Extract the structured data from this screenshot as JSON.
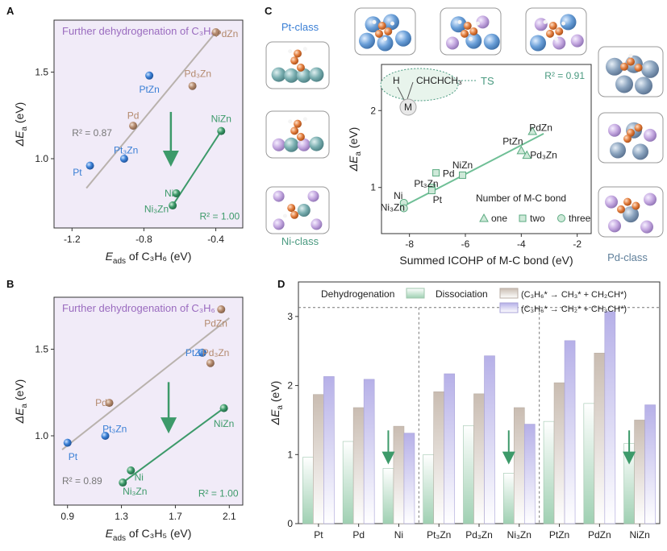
{
  "colors": {
    "pt": "#3a7fd5",
    "pd": "#b48a6e",
    "ni": "#3d9a6a",
    "line_gray": "#b9b2ad",
    "panel_bg": "#f1ebf8",
    "title_purple": "#9a6bbf",
    "teal": "#4a9a80",
    "bar_green_top": "#cfe6d8",
    "bar_beige_top": "#d9d0c8",
    "bar_purple_top": "#c7c3e6"
  },
  "chart_data": [
    {
      "panel": "A",
      "type": "scatter",
      "title": "Further dehydrogenation of C₃H₆",
      "xlabel_main": "E",
      "xlabel_sub": "ads",
      "xlabel_rest": " of C₃H₆ (eV)",
      "ylabel_main": "ΔE",
      "ylabel_sub": "a",
      "ylabel_rest": " (eV)",
      "xlim": [
        -1.3,
        -0.25
      ],
      "ylim": [
        0.6,
        1.8
      ],
      "xticks": [
        "-1.2",
        "-0.8",
        "-0.4"
      ],
      "xtick_values": [
        -1.2,
        -0.8,
        -0.4
      ],
      "yticks": [
        "1.0",
        "1.5"
      ],
      "ytick_values": [
        1.0,
        1.5
      ],
      "points": [
        {
          "label": "Pt",
          "x": -1.1,
          "y": 0.96,
          "cls": "pt",
          "lx": -1.17,
          "ly": 0.92
        },
        {
          "label": "Pt₃Zn",
          "x": -0.91,
          "y": 1.0,
          "cls": "pt",
          "lx": -0.9,
          "ly": 1.05
        },
        {
          "label": "PtZn",
          "x": -0.77,
          "y": 1.48,
          "cls": "pt",
          "lx": -0.77,
          "ly": 1.4
        },
        {
          "label": "Pd",
          "x": -0.86,
          "y": 1.19,
          "cls": "pd",
          "lx": -0.86,
          "ly": 1.25
        },
        {
          "label": "Pd₃Zn",
          "x": -0.53,
          "y": 1.42,
          "cls": "pd",
          "lx": -0.5,
          "ly": 1.49
        },
        {
          "label": "PdZn",
          "x": -0.4,
          "y": 1.73,
          "cls": "pd",
          "lx": -0.34,
          "ly": 1.72
        },
        {
          "label": "NiZn",
          "x": -0.37,
          "y": 1.16,
          "cls": "ni",
          "lx": -0.37,
          "ly": 1.23
        },
        {
          "label": "Ni",
          "x": -0.62,
          "y": 0.8,
          "cls": "ni",
          "lx": -0.66,
          "ly": 0.8
        },
        {
          "label": "Ni₃Zn",
          "x": -0.64,
          "y": 0.73,
          "cls": "ni",
          "lx": -0.73,
          "ly": 0.71
        }
      ],
      "fits": [
        {
          "x": [
            -1.12,
            -0.4
          ],
          "y": [
            0.83,
            1.73
          ],
          "cls": "line_gray"
        },
        {
          "x": [
            -0.64,
            -0.37
          ],
          "y": [
            0.73,
            1.16
          ],
          "cls": "ni"
        }
      ],
      "r2_gray": "R² = 0.87",
      "r2_gray_pos": [
        -1.2,
        1.13
      ],
      "r2_green": "R² = 1.00",
      "r2_green_pos": [
        -0.49,
        0.65
      ],
      "arrow": {
        "x": -0.65,
        "y1": 1.27,
        "y2": 1.0
      }
    },
    {
      "panel": "B",
      "type": "scatter",
      "title": "Further dehydrogenation of C₃H₆",
      "xlabel_main": "E",
      "xlabel_sub": "ads",
      "xlabel_rest": " of C₃H₅ (eV)",
      "ylabel_main": "ΔE",
      "ylabel_sub": "a",
      "ylabel_rest": " (eV)",
      "xlim": [
        0.8,
        2.2
      ],
      "ylim": [
        0.6,
        1.8
      ],
      "xticks": [
        "0.9",
        "1.3",
        "1.7",
        "2.1"
      ],
      "xtick_values": [
        0.9,
        1.3,
        1.7,
        2.1
      ],
      "yticks": [
        "1.0",
        "1.5"
      ],
      "ytick_values": [
        1.0,
        1.5
      ],
      "points": [
        {
          "label": "Pt",
          "x": 0.9,
          "y": 0.96,
          "cls": "pt",
          "lx": 0.94,
          "ly": 0.88
        },
        {
          "label": "Pt₃Zn",
          "x": 1.18,
          "y": 1.0,
          "cls": "pt",
          "lx": 1.25,
          "ly": 1.04
        },
        {
          "label": "PtZn",
          "x": 1.9,
          "y": 1.48,
          "cls": "pt",
          "lx": 1.85,
          "ly": 1.48
        },
        {
          "label": "Pd",
          "x": 1.21,
          "y": 1.19,
          "cls": "pd",
          "lx": 1.15,
          "ly": 1.19
        },
        {
          "label": "Pd₃Zn",
          "x": 1.96,
          "y": 1.42,
          "cls": "pd",
          "lx": 2.0,
          "ly": 1.48
        },
        {
          "label": "PdZn",
          "x": 2.04,
          "y": 1.73,
          "cls": "pd",
          "lx": 2.0,
          "ly": 1.65
        },
        {
          "label": "NiZn",
          "x": 2.06,
          "y": 1.16,
          "cls": "ni",
          "lx": 2.06,
          "ly": 1.07
        },
        {
          "label": "Ni",
          "x": 1.37,
          "y": 0.8,
          "cls": "ni",
          "lx": 1.43,
          "ly": 0.76
        },
        {
          "label": "Ni₃Zn",
          "x": 1.31,
          "y": 0.73,
          "cls": "ni",
          "lx": 1.4,
          "ly": 0.68
        }
      ],
      "fits": [
        {
          "x": [
            0.86,
            2.1
          ],
          "y": [
            0.92,
            1.68
          ],
          "cls": "line_gray"
        },
        {
          "x": [
            1.31,
            2.06
          ],
          "y": [
            0.73,
            1.16
          ],
          "cls": "ni"
        }
      ],
      "r2_gray": "R² = 0.89",
      "r2_gray_pos": [
        0.86,
        0.72
      ],
      "r2_green": "R² = 1.00",
      "r2_green_pos": [
        1.87,
        0.65
      ],
      "arrow": {
        "x": 1.65,
        "y1": 1.31,
        "y2": 1.06
      }
    },
    {
      "panel": "C",
      "type": "scatter",
      "xlabel": "Summed ICOHP of M-C bond (eV)",
      "ylabel_main": "ΔE",
      "ylabel_sub": "a",
      "ylabel_rest": " (eV)",
      "xlim": [
        -9.0,
        -1.5
      ],
      "ylim": [
        0.4,
        2.6
      ],
      "xticks": [
        "-8",
        "-6",
        "-4",
        "-2"
      ],
      "xtick_values": [
        -8,
        -6,
        -4,
        -2
      ],
      "yticks": [
        "1",
        "2"
      ],
      "ytick_values": [
        1,
        2
      ],
      "r2": "R² = 0.91",
      "ts_label": "TS",
      "ts_h": "H",
      "ts_m": "M",
      "ts_c": "CHCHCH₃",
      "legend_title": "Number of M-C bond",
      "legend_items": [
        {
          "label": "one",
          "marker": "triangle"
        },
        {
          "label": "two",
          "marker": "square"
        },
        {
          "label": "three",
          "marker": "circle"
        }
      ],
      "fit": {
        "x": [
          -8.2,
          -3.2
        ],
        "y": [
          0.76,
          1.7
        ]
      },
      "points": [
        {
          "label": "PdZn",
          "x": -3.6,
          "y": 1.73,
          "marker": "triangle",
          "lx": -3.3,
          "ly": 1.78
        },
        {
          "label": "PtZn",
          "x": -4.0,
          "y": 1.48,
          "marker": "triangle",
          "lx": -4.3,
          "ly": 1.6
        },
        {
          "label": "Pd₃Zn",
          "x": -3.8,
          "y": 1.42,
          "marker": "triangle",
          "lx": -3.2,
          "ly": 1.42
        },
        {
          "label": "NiZn",
          "x": -6.1,
          "y": 1.16,
          "marker": "square",
          "lx": -6.1,
          "ly": 1.29
        },
        {
          "label": "Pd",
          "x": -7.05,
          "y": 1.19,
          "marker": "square",
          "lx": -6.6,
          "ly": 1.18
        },
        {
          "label": "Pt₃Zn",
          "x": -7.2,
          "y": 1.0,
          "marker": "square",
          "lx": -7.4,
          "ly": 1.05
        },
        {
          "label": "Pt",
          "x": -7.2,
          "y": 0.96,
          "marker": "square",
          "lx": -7.0,
          "ly": 0.84
        },
        {
          "label": "Ni",
          "x": -8.2,
          "y": 0.8,
          "marker": "circle",
          "lx": -8.4,
          "ly": 0.89
        },
        {
          "label": "Ni₃Zn",
          "x": -8.2,
          "y": 0.73,
          "marker": "circle",
          "lx": -8.6,
          "ly": 0.74
        }
      ],
      "class_labels": [
        "Pt-class",
        "Ni-class",
        "Pd-class"
      ]
    },
    {
      "panel": "D",
      "type": "bar",
      "ylabel_main": "ΔE",
      "ylabel_sub": "a",
      "ylabel_rest": " (eV)",
      "ylim": [
        0,
        3.5
      ],
      "yticks": [
        "0",
        "1",
        "2",
        "3"
      ],
      "ytick_values": [
        0,
        1,
        2,
        3
      ],
      "categories": [
        "Pt",
        "Pd",
        "Ni",
        "Pt₃Zn",
        "Pd₃Zn",
        "Ni₃Zn",
        "PtZn",
        "PdZn",
        "NiZn"
      ],
      "series": [
        {
          "name": "Dehydrogenation",
          "values": [
            0.96,
            1.19,
            0.8,
            1.0,
            1.42,
            0.73,
            1.48,
            1.74,
            1.16
          ],
          "color": "green"
        },
        {
          "name": "(C₃H₆* → CH₃* + CH₂CH*)",
          "values": [
            1.87,
            1.68,
            1.41,
            1.91,
            1.88,
            1.68,
            2.04,
            2.47,
            1.5
          ],
          "color": "beige"
        },
        {
          "name": "(C₃H₆* → CH₂* + CH₃CH*)",
          "values": [
            2.13,
            2.09,
            1.31,
            2.17,
            2.43,
            1.44,
            2.65,
            3.07,
            1.72
          ],
          "color": "purple"
        }
      ],
      "legend_dehydro": "Dehydrogenation",
      "legend_dissoc": "Dissociation",
      "hline": 3.13,
      "arrows_at": [
        2,
        5,
        8
      ]
    }
  ]
}
